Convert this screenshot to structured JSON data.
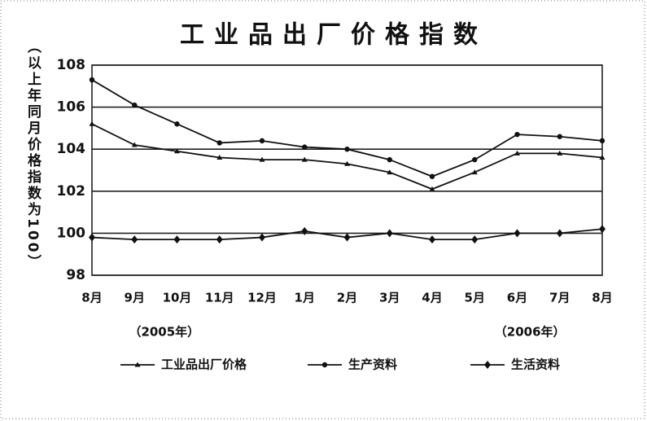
{
  "chart_data": {
    "type": "line",
    "title": "工业品出厂价格指数",
    "y_label": "（以上年同月价格指数为100）",
    "categories": [
      "8月",
      "9月",
      "10月",
      "11月",
      "12月",
      "1月",
      "2月",
      "3月",
      "4月",
      "5月",
      "6月",
      "7月",
      "8月"
    ],
    "annotations": [
      "（2005年）",
      "（2006年）"
    ],
    "series": [
      {
        "name": "工业品出厂价格",
        "color": "#111111",
        "marker": "triangle",
        "values": [
          105.2,
          104.2,
          103.9,
          103.6,
          103.5,
          103.5,
          103.3,
          102.9,
          102.1,
          102.9,
          103.8,
          103.8,
          103.6
        ]
      },
      {
        "name": "生产资料",
        "color": "#111111",
        "marker": "circle",
        "values": [
          107.3,
          106.1,
          105.2,
          104.3,
          104.4,
          104.1,
          104.0,
          103.5,
          102.7,
          103.5,
          104.7,
          104.6,
          104.4
        ]
      },
      {
        "name": "生活资料",
        "color": "#111111",
        "marker": "diamond",
        "values": [
          99.8,
          99.7,
          99.7,
          99.7,
          99.8,
          100.1,
          99.8,
          100.0,
          99.7,
          99.7,
          100.0,
          100.0,
          100.2
        ]
      }
    ],
    "ylim": [
      98,
      108
    ],
    "yticks": [
      98,
      100,
      102,
      104,
      106,
      108
    ],
    "grid": true
  }
}
